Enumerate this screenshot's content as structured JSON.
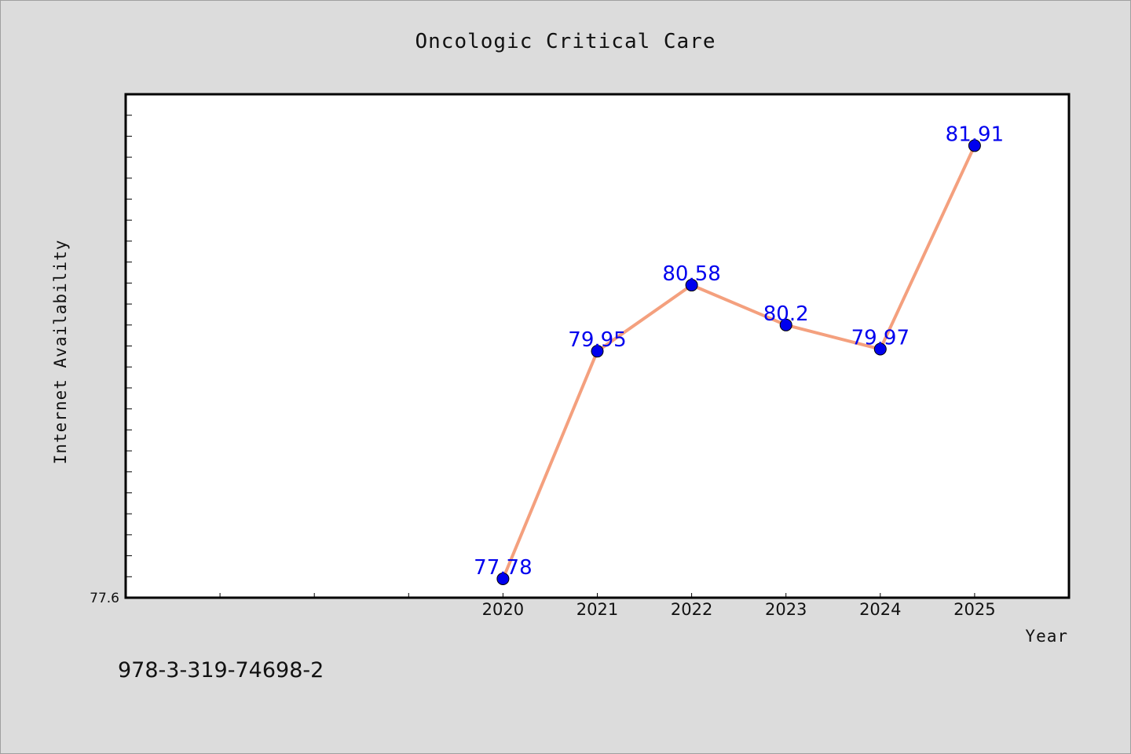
{
  "chart_data": {
    "type": "line",
    "title": "Oncologic Critical Care",
    "xlabel": "Year",
    "ylabel": "Internet Availability",
    "x": [
      "2020",
      "2021",
      "2022",
      "2023",
      "2024",
      "2025"
    ],
    "series": [
      {
        "values": [
          77.78,
          79.95,
          80.58,
          80.2,
          79.97,
          81.91
        ]
      }
    ],
    "data_labels": [
      "77.78",
      "79.95",
      "80.58",
      "80.2",
      "79.97",
      "81.91"
    ],
    "ylim": [
      77.6,
      82.4
    ],
    "xlim": [
      2016,
      2026
    ],
    "y_min_label": "77.6",
    "grid": false,
    "legend": "none"
  },
  "footer": {
    "isbn": "978-3-319-74698-2"
  },
  "colors": {
    "line": "#f4a07e",
    "marker": "#0000ee",
    "label": "#0000ee",
    "background": "#dcdcdc",
    "plot": "#ffffff"
  }
}
